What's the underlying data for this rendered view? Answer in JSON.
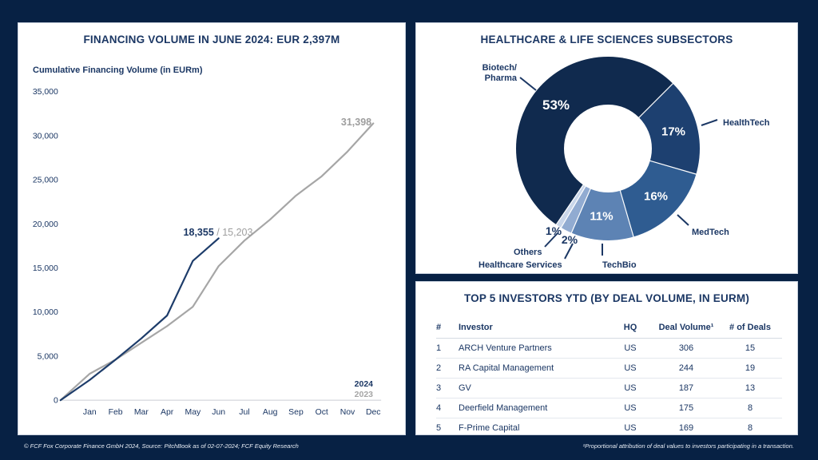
{
  "page": {
    "background_color": "#072144",
    "footer_left": "© FCF Fox Corporate Finance GmbH 2024, Source: PitchBook as of 02-07-2024; FCF Equity Research",
    "footer_right": "¹Proportional attribution of deal values to investors participating in a transaction."
  },
  "financing": {
    "title": "FINANCING VOLUME IN JUNE 2024: EUR 2,397M",
    "axis_title": "Cumulative Financing Volume (in EURm)",
    "legend": {
      "series_2024": "2024",
      "series_2023": "2023"
    },
    "annotation_jun_2024": "18,355",
    "annotation_jun_divider": " / ",
    "annotation_jun_2023": "15,203",
    "annotation_dec_2023": "31,398"
  },
  "subsectors": {
    "title": "HEALTHCARE & LIFE SCIENCES SUBSECTORS",
    "slices": [
      {
        "label": "Biotech/Pharma",
        "label_line1": "Biotech/",
        "label_line2": "Pharma",
        "pct": "53%",
        "value": 53,
        "color": "#102a4e"
      },
      {
        "label": "HealthTech",
        "pct": "17%",
        "value": 17,
        "color": "#1d4070"
      },
      {
        "label": "MedTech",
        "pct": "16%",
        "value": 16,
        "color": "#2f5c91"
      },
      {
        "label": "TechBio",
        "pct": "11%",
        "value": 11,
        "color": "#5d83b4"
      },
      {
        "label": "Healthcare Services",
        "pct": "2%",
        "value": 2,
        "color": "#91abd1"
      },
      {
        "label": "Others",
        "pct": "1%",
        "value": 1,
        "color": "#c9d6ea"
      }
    ]
  },
  "investors": {
    "title": "TOP 5 INVESTORS YTD (BY DEAL VOLUME, IN EURM)",
    "columns": [
      "#",
      "Investor",
      "HQ",
      "Deal Volume¹",
      "# of Deals"
    ],
    "rows": [
      [
        "1",
        "ARCH Venture Partners",
        "US",
        "306",
        "15"
      ],
      [
        "2",
        "RA Capital Management",
        "US",
        "244",
        "19"
      ],
      [
        "3",
        "GV",
        "US",
        "187",
        "13"
      ],
      [
        "4",
        "Deerfield Management",
        "US",
        "175",
        "8"
      ],
      [
        "5",
        "F-Prime Capital",
        "US",
        "169",
        "8"
      ]
    ]
  },
  "chart_data": [
    {
      "type": "line",
      "title": "FINANCING VOLUME IN JUNE 2024: EUR 2,397M",
      "ylabel": "Cumulative Financing Volume (in EURm)",
      "categories": [
        "Jan",
        "Feb",
        "Mar",
        "Apr",
        "May",
        "Jun",
        "Jul",
        "Aug",
        "Sep",
        "Oct",
        "Nov",
        "Dec"
      ],
      "ylim": [
        0,
        35000
      ],
      "yticks": [
        0,
        5000,
        10000,
        15000,
        20000,
        25000,
        30000,
        35000
      ],
      "grid": false,
      "legend_position": "bottom-right",
      "x_includes_origin": true,
      "series": [
        {
          "name": "2024",
          "color": "#1d3c6a",
          "values": [
            0,
            2300,
            4600,
            7000,
            9600,
            15800,
            18355
          ],
          "end_label": "18,355"
        },
        {
          "name": "2023",
          "color": "#a6a6a6",
          "values": [
            0,
            3000,
            4600,
            6500,
            8400,
            10600,
            15203,
            18100,
            20500,
            23200,
            25400,
            28200,
            31398
          ],
          "jun_label": "15,203",
          "end_label": "31,398"
        }
      ]
    },
    {
      "type": "pie",
      "donut": true,
      "title": "HEALTHCARE & LIFE SCIENCES SUBSECTORS",
      "start_angle_deg": 45,
      "categories": [
        "HealthTech",
        "MedTech",
        "TechBio",
        "Healthcare Services",
        "Others",
        "Biotech/Pharma"
      ],
      "values": [
        17,
        16,
        11,
        2,
        1,
        53
      ],
      "colors": [
        "#1d4070",
        "#2f5c91",
        "#5d83b4",
        "#91abd1",
        "#c9d6ea",
        "#102a4e"
      ],
      "labels": [
        "17%",
        "16%",
        "11%",
        "2%",
        "1%",
        "53%"
      ]
    }
  ]
}
